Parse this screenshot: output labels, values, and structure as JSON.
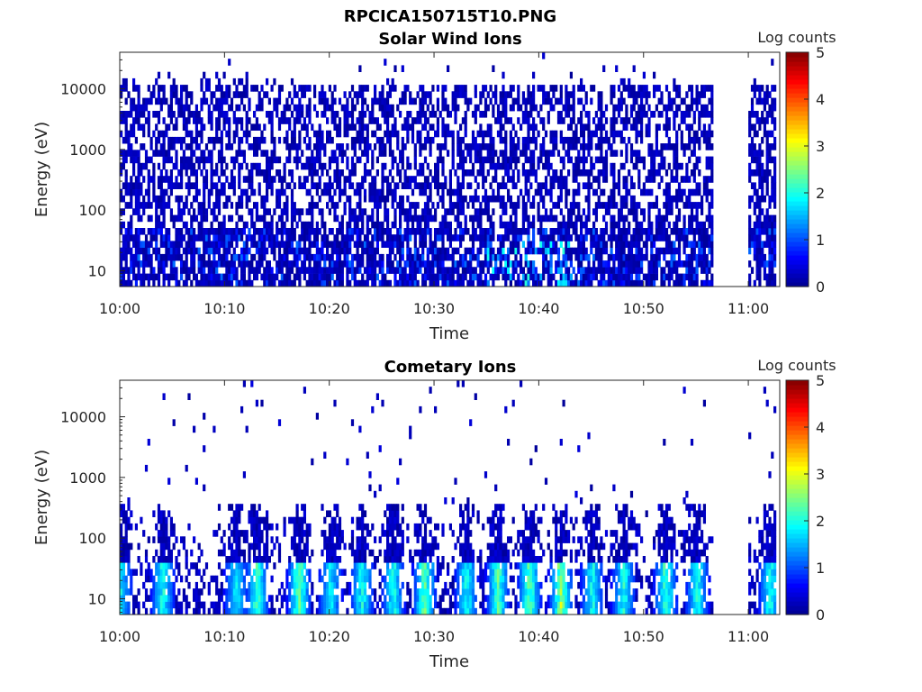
{
  "figure_title": "RPCICA150715T10.PNG",
  "colors": {
    "colormap": [
      "#00008f",
      "#0000ff",
      "#0080ff",
      "#00ffff",
      "#80ff80",
      "#ffff00",
      "#ff8000",
      "#ff0000",
      "#800000"
    ],
    "background": "#ffffff",
    "axis": "#262626"
  },
  "chart_data": [
    {
      "type": "heatmap",
      "title": "Solar Wind Ions",
      "xlabel": "Time",
      "ylabel": "Energy (eV)",
      "x_ticks": [
        "10:00",
        "10:10",
        "10:20",
        "10:30",
        "10:40",
        "10:50",
        "11:00"
      ],
      "xlim": [
        "10:00",
        "11:03"
      ],
      "y_scale": "log",
      "y_ticks": [
        "10",
        "100",
        "1000",
        "10000"
      ],
      "ylim": [
        5.5,
        40000
      ],
      "data_gaps": [
        [
          "10:56",
          "11:00"
        ]
      ],
      "colorbar": {
        "label": "Log counts",
        "ticks": [
          "0",
          "1",
          "2",
          "3",
          "4",
          "5"
        ],
        "range": [
          0,
          5
        ]
      },
      "description_of_values": "Dense low-level counts (log ~0-0.5) across 10 eV to ~15 keV; higher (log ~1-2) at 10-30 eV around 10:36-10:42"
    },
    {
      "type": "heatmap",
      "title": "Cometary Ions",
      "xlabel": "Time",
      "ylabel": "Energy (eV)",
      "x_ticks": [
        "10:00",
        "10:10",
        "10:20",
        "10:30",
        "10:40",
        "10:50",
        "11:00"
      ],
      "xlim": [
        "10:00",
        "11:03"
      ],
      "y_scale": "log",
      "y_ticks": [
        "10",
        "100",
        "1000",
        "10000"
      ],
      "ylim": [
        5.5,
        40000
      ],
      "data_gaps": [
        [
          "10:56",
          "11:00"
        ]
      ],
      "colorbar": {
        "label": "Log counts",
        "ticks": [
          "0",
          "1",
          "2",
          "3",
          "4",
          "5"
        ],
        "range": [
          0,
          5
        ]
      },
      "bursts": [
        {
          "time": "10:00",
          "peak_log": 1.8
        },
        {
          "time": "10:04",
          "peak_log": 2.0
        },
        {
          "time": "10:11",
          "peak_log": 1.8
        },
        {
          "time": "10:13",
          "peak_log": 2.3
        },
        {
          "time": "10:17",
          "peak_log": 2.5
        },
        {
          "time": "10:20",
          "peak_log": 1.8
        },
        {
          "time": "10:23",
          "peak_log": 2.0
        },
        {
          "time": "10:26",
          "peak_log": 2.0
        },
        {
          "time": "10:29",
          "peak_log": 2.5
        },
        {
          "time": "10:33",
          "peak_log": 2.0
        },
        {
          "time": "10:36",
          "peak_log": 2.3
        },
        {
          "time": "10:39",
          "peak_log": 2.5
        },
        {
          "time": "10:42",
          "peak_log": 2.8
        },
        {
          "time": "10:45",
          "peak_log": 2.0
        },
        {
          "time": "10:48",
          "peak_log": 2.0
        },
        {
          "time": "10:52",
          "peak_log": 2.3
        },
        {
          "time": "10:55",
          "peak_log": 2.0
        },
        {
          "time": "11:02",
          "peak_log": 2.0
        }
      ]
    }
  ]
}
